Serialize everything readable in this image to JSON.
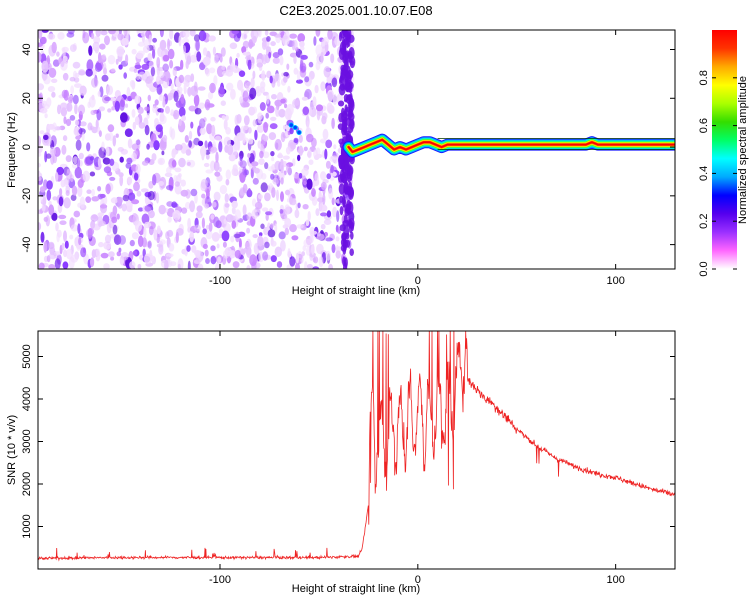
{
  "title": "C2E3.2025.001.10.07.E08",
  "chart_data": [
    {
      "type": "heatmap",
      "xlabel": "Height of straight line (km)",
      "ylabel": "Frequency (Hz)",
      "xlim": [
        -192,
        130
      ],
      "ylim": [
        -50,
        48
      ],
      "xticks": [
        -100,
        0,
        100
      ],
      "yticks": [
        -40,
        -20,
        0,
        20,
        40
      ],
      "colorbar": {
        "label": "Normalized spectral amplitude",
        "range": [
          0,
          1
        ],
        "ticks": [
          0.0,
          0.2,
          0.4,
          0.6,
          0.8
        ],
        "colors": [
          "#ffffff",
          "#ff66ff",
          "#9b30ff",
          "#5500ee",
          "#0000ff",
          "#00aaff",
          "#00ffff",
          "#00ff66",
          "#33dd00",
          "#aaff00",
          "#ffff00",
          "#ffaa00",
          "#ff3300",
          "#ff0000"
        ]
      },
      "noise_region_x": [
        -192,
        -33
      ],
      "signal_track": {
        "x": [
          -35,
          -33,
          -30,
          -27,
          -24,
          -21,
          -18,
          -15,
          -12,
          -9,
          -6,
          -3,
          0,
          3,
          6,
          9,
          12,
          15,
          20,
          40,
          60,
          80,
          85,
          88,
          91,
          95,
          100,
          130
        ],
        "y": [
          0,
          -2,
          -1,
          0,
          1,
          2,
          3,
          1,
          -1,
          0,
          -1,
          0,
          1,
          2,
          2,
          1,
          0,
          1,
          1,
          1,
          1,
          1,
          1,
          2,
          1,
          1,
          1,
          1
        ]
      },
      "grid": false,
      "legend": "none"
    },
    {
      "type": "line",
      "xlabel": "Height of straight line (km)",
      "ylabel": "SNR (10 * v/v)",
      "xlim": [
        -192,
        130
      ],
      "ylim": [
        0,
        5600
      ],
      "xticks": [
        -100,
        0,
        100
      ],
      "yticks": [
        1000,
        2000,
        3000,
        4000,
        5000
      ],
      "series": [
        {
          "color": "#ee2222",
          "x": [
            -192,
            -150,
            -100,
            -50,
            -30,
            -28,
            -25,
            -24,
            -23,
            -20,
            -15,
            -10,
            -5,
            0,
            3,
            6,
            10,
            15,
            20,
            22,
            25,
            30,
            40,
            50,
            60,
            70,
            80,
            90,
            100,
            110,
            120,
            130
          ],
          "y": [
            250,
            270,
            270,
            270,
            300,
            500,
            1500,
            3200,
            3400,
            3000,
            3200,
            3300,
            3500,
            3600,
            3400,
            3500,
            3600,
            3800,
            4200,
            5200,
            4500,
            4200,
            3800,
            3300,
            2900,
            2600,
            2400,
            2250,
            2150,
            2000,
            1850,
            1750
          ]
        }
      ],
      "grid": false,
      "legend": "none"
    }
  ]
}
